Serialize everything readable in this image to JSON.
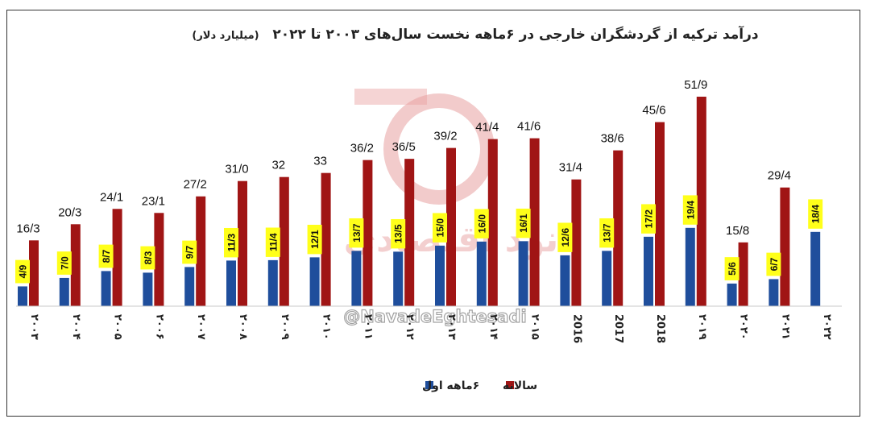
{
  "chart_data": {
    "type": "bar",
    "title": "درآمد ترکیه از گردشگران خارجی در ۶ماهه نخست سال‌های ۲۰۰۳ تا ۲۰۲۲",
    "subtitle": "(میلیارد دلار)",
    "categories": [
      "۲۰۰۳",
      "۲۰۰۴",
      "۲۰۰۵",
      "۲۰۰۶",
      "۲۰۰۷",
      "۲۰۰۸",
      "۲۰۰۹",
      "۲۰۱۰",
      "۲۰۱۱",
      "۲۰۱۲",
      "۲۰۱۳",
      "۲۰۱۴",
      "۲۰۱۵",
      "2016",
      "2017",
      "2018",
      "۲۰۱۹",
      "۲۰۲۰",
      "۲۰۲۱",
      "۲۰۲۲"
    ],
    "ylim": [
      0,
      55
    ],
    "grid": false,
    "legend_position": "bottom-center",
    "series": [
      {
        "name": "۶ماهه اول",
        "color": "#1f4e9c",
        "values": [
          4.9,
          7.0,
          8.7,
          8.3,
          9.7,
          11.3,
          11.4,
          12.1,
          13.7,
          13.5,
          15.0,
          16.0,
          16.1,
          12.6,
          13.7,
          17.2,
          19.4,
          5.6,
          6.7,
          18.4
        ],
        "labels": [
          "4/9",
          "7/0",
          "8/7",
          "8/3",
          "9/7",
          "11/3",
          "11/4",
          "12/1",
          "13/7",
          "13/5",
          "15/0",
          "16/0",
          "16/1",
          "12/6",
          "13/7",
          "17/2",
          "19/4",
          "5/6",
          "6/7",
          "18/4"
        ]
      },
      {
        "name": "سالانه",
        "color": "#a01515",
        "values": [
          16.3,
          20.3,
          24.1,
          23.1,
          27.2,
          31.0,
          32,
          33,
          36.2,
          36.5,
          39.2,
          41.4,
          41.6,
          31.4,
          38.6,
          45.6,
          51.9,
          15.8,
          29.4,
          null
        ],
        "labels": [
          "16/3",
          "20/3",
          "24/1",
          "23/1",
          "27/2",
          "31/0",
          "32",
          "33",
          "36/2",
          "36/5",
          "39/2",
          "41/4",
          "41/6",
          "31/4",
          "38/6",
          "45/6",
          "51/9",
          "15/8",
          "29/4",
          ""
        ]
      }
    ]
  },
  "watermark": {
    "text": "@NavadeEghtesadi",
    "logo_text": "نود اقتصادی",
    "color": "#e8a0a0"
  }
}
